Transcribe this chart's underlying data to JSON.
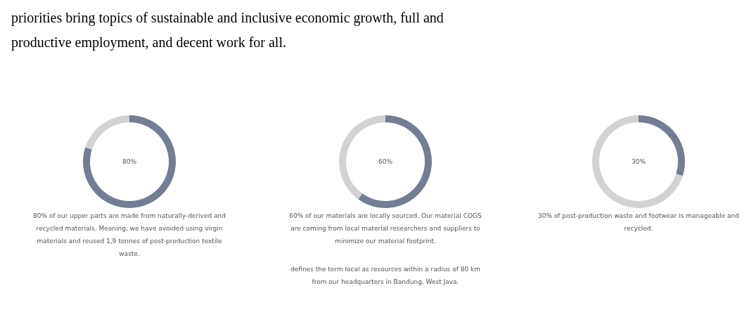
{
  "chart_data": [
    {
      "type": "other",
      "annotations": [
        "priorities bring topics of sustainable and inclusive economic growth, full and productive employment, and decent work for all."
      ]
    },
    {
      "type": "donut",
      "categories": [
        null,
        null
      ],
      "values": [
        80,
        20
      ],
      "colors": [
        "#737e92",
        "#d2d2d2"
      ],
      "title": "80%",
      "annotations": [
        "80% of our upper parts are made from naturally-derived and recycled materials. Meaning, we have avoided using virgin materials and reused 1,9 tonnes of post-production textile waste."
      ]
    },
    {
      "type": "donut",
      "categories": [
        null,
        null
      ],
      "values": [
        60,
        40
      ],
      "colors": [
        "#737e92",
        "#d2d2d2"
      ],
      "title": "60%",
      "annotations": [
        "60% of our materials are locally sourced. Our material COGS are coming from local material researchers and suppliers to minimize our material footprint.",
        "defines the term local as resources within a radius of 80 km from our headquarters in Bandung, West Java."
      ]
    },
    {
      "type": "donut",
      "categories": [
        null,
        null
      ],
      "values": [
        30,
        70
      ],
      "colors": [
        "#737e92",
        "#d2d2d2"
      ],
      "title": "30%",
      "annotations": [
        "30% of post-production waste and footwear is manageable and recycled."
      ]
    }
  ]
}
